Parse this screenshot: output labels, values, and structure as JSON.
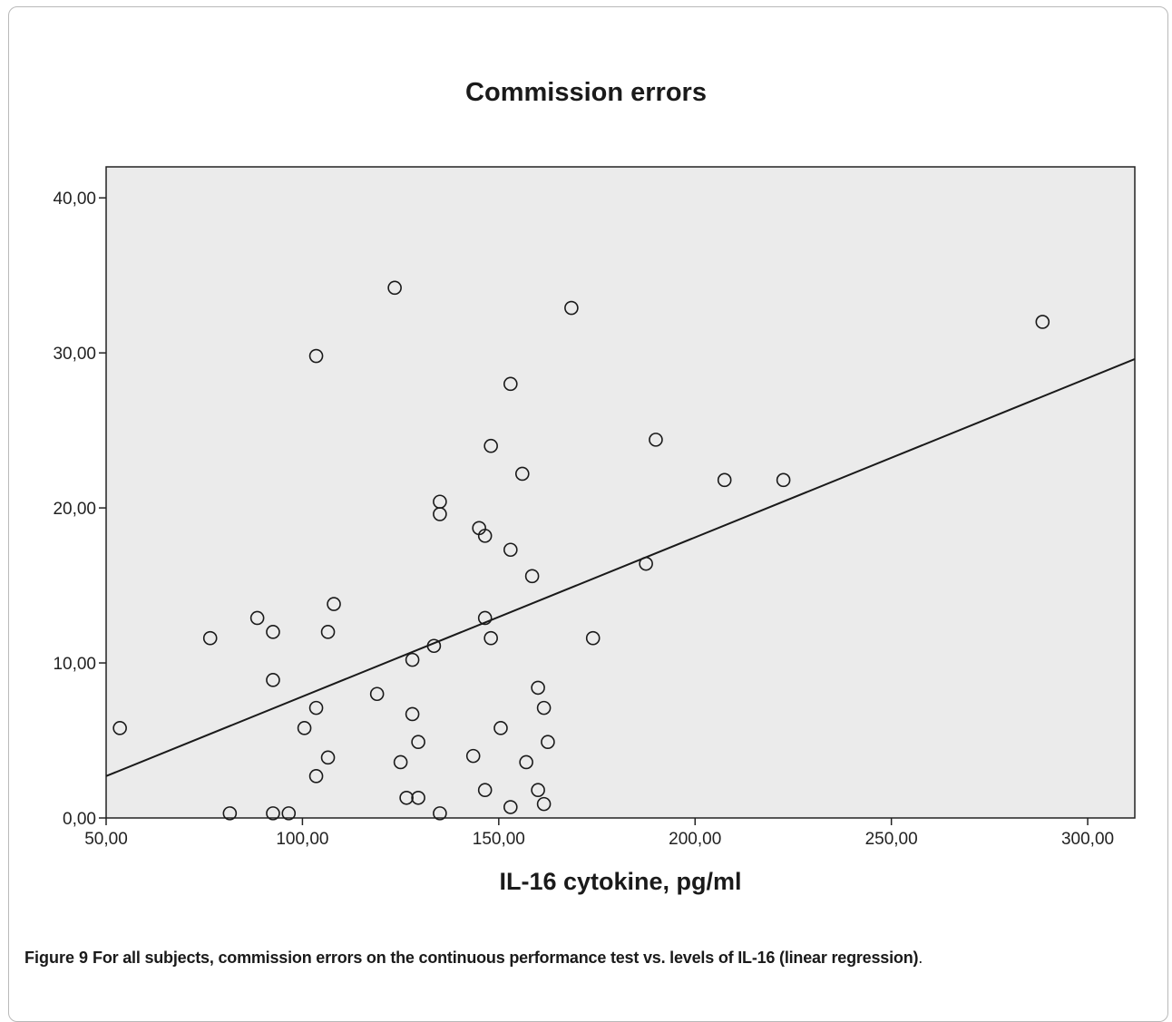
{
  "chart_data": {
    "type": "scatter",
    "title": "Commission errors",
    "xlabel": "IL-16 cytokine, pg/ml",
    "ylabel": "",
    "xlim": [
      50,
      312
    ],
    "ylim": [
      0,
      42
    ],
    "xticks": [
      "50,00",
      "100,00",
      "150,00",
      "200,00",
      "250,00",
      "300,00"
    ],
    "xtick_values": [
      50,
      100,
      150,
      200,
      250,
      300
    ],
    "yticks": [
      "0,00",
      "10,00",
      "20,00",
      "30,00",
      "40,00"
    ],
    "ytick_values": [
      0,
      10,
      20,
      30,
      40
    ],
    "grid": false,
    "points": [
      {
        "x": 53.5,
        "y": 5.8
      },
      {
        "x": 76.5,
        "y": 11.6
      },
      {
        "x": 81.5,
        "y": 0.3
      },
      {
        "x": 88.5,
        "y": 12.9
      },
      {
        "x": 92.5,
        "y": 12.0
      },
      {
        "x": 92.5,
        "y": 8.9
      },
      {
        "x": 92.5,
        "y": 0.3
      },
      {
        "x": 96.5,
        "y": 0.3
      },
      {
        "x": 100.5,
        "y": 5.8
      },
      {
        "x": 103.5,
        "y": 29.8
      },
      {
        "x": 103.5,
        "y": 7.1
      },
      {
        "x": 103.5,
        "y": 2.7
      },
      {
        "x": 106.5,
        "y": 12.0
      },
      {
        "x": 106.5,
        "y": 3.9
      },
      {
        "x": 108.0,
        "y": 13.8
      },
      {
        "x": 119.0,
        "y": 8.0
      },
      {
        "x": 123.5,
        "y": 34.2
      },
      {
        "x": 125.0,
        "y": 3.6
      },
      {
        "x": 126.5,
        "y": 1.3
      },
      {
        "x": 128.0,
        "y": 10.2
      },
      {
        "x": 128.0,
        "y": 6.7
      },
      {
        "x": 129.5,
        "y": 4.9
      },
      {
        "x": 129.5,
        "y": 1.3
      },
      {
        "x": 133.5,
        "y": 11.1
      },
      {
        "x": 135.0,
        "y": 20.4
      },
      {
        "x": 135.0,
        "y": 19.6
      },
      {
        "x": 135.0,
        "y": 0.3
      },
      {
        "x": 143.5,
        "y": 4.0
      },
      {
        "x": 145.0,
        "y": 18.7
      },
      {
        "x": 146.5,
        "y": 18.2
      },
      {
        "x": 146.5,
        "y": 12.9
      },
      {
        "x": 146.5,
        "y": 1.8
      },
      {
        "x": 148.0,
        "y": 24.0
      },
      {
        "x": 148.0,
        "y": 11.6
      },
      {
        "x": 150.5,
        "y": 5.8
      },
      {
        "x": 153.0,
        "y": 28.0
      },
      {
        "x": 153.0,
        "y": 17.3
      },
      {
        "x": 153.0,
        "y": 0.7
      },
      {
        "x": 156.0,
        "y": 22.2
      },
      {
        "x": 157.0,
        "y": 3.6
      },
      {
        "x": 158.5,
        "y": 15.6
      },
      {
        "x": 160.0,
        "y": 8.4
      },
      {
        "x": 160.0,
        "y": 1.8
      },
      {
        "x": 161.5,
        "y": 7.1
      },
      {
        "x": 161.5,
        "y": 0.9
      },
      {
        "x": 162.5,
        "y": 4.9
      },
      {
        "x": 168.5,
        "y": 32.9
      },
      {
        "x": 174.0,
        "y": 11.6
      },
      {
        "x": 187.5,
        "y": 16.4
      },
      {
        "x": 190.0,
        "y": 24.4
      },
      {
        "x": 207.5,
        "y": 21.8
      },
      {
        "x": 222.5,
        "y": 21.8
      },
      {
        "x": 288.5,
        "y": 32.0
      }
    ],
    "regression_line": {
      "x": [
        50,
        312
      ],
      "y": [
        2.7,
        29.6
      ]
    }
  },
  "figure": {
    "caption_label": "Figure 9",
    "caption_text": "For all subjects, commission errors on the continuous performance test vs. levels of IL-16 (linear regression)",
    "caption_end": "."
  },
  "colors": {
    "plot_background": "#ebebeb",
    "marker": "#1a1a1a",
    "line": "#1a1a1a"
  }
}
